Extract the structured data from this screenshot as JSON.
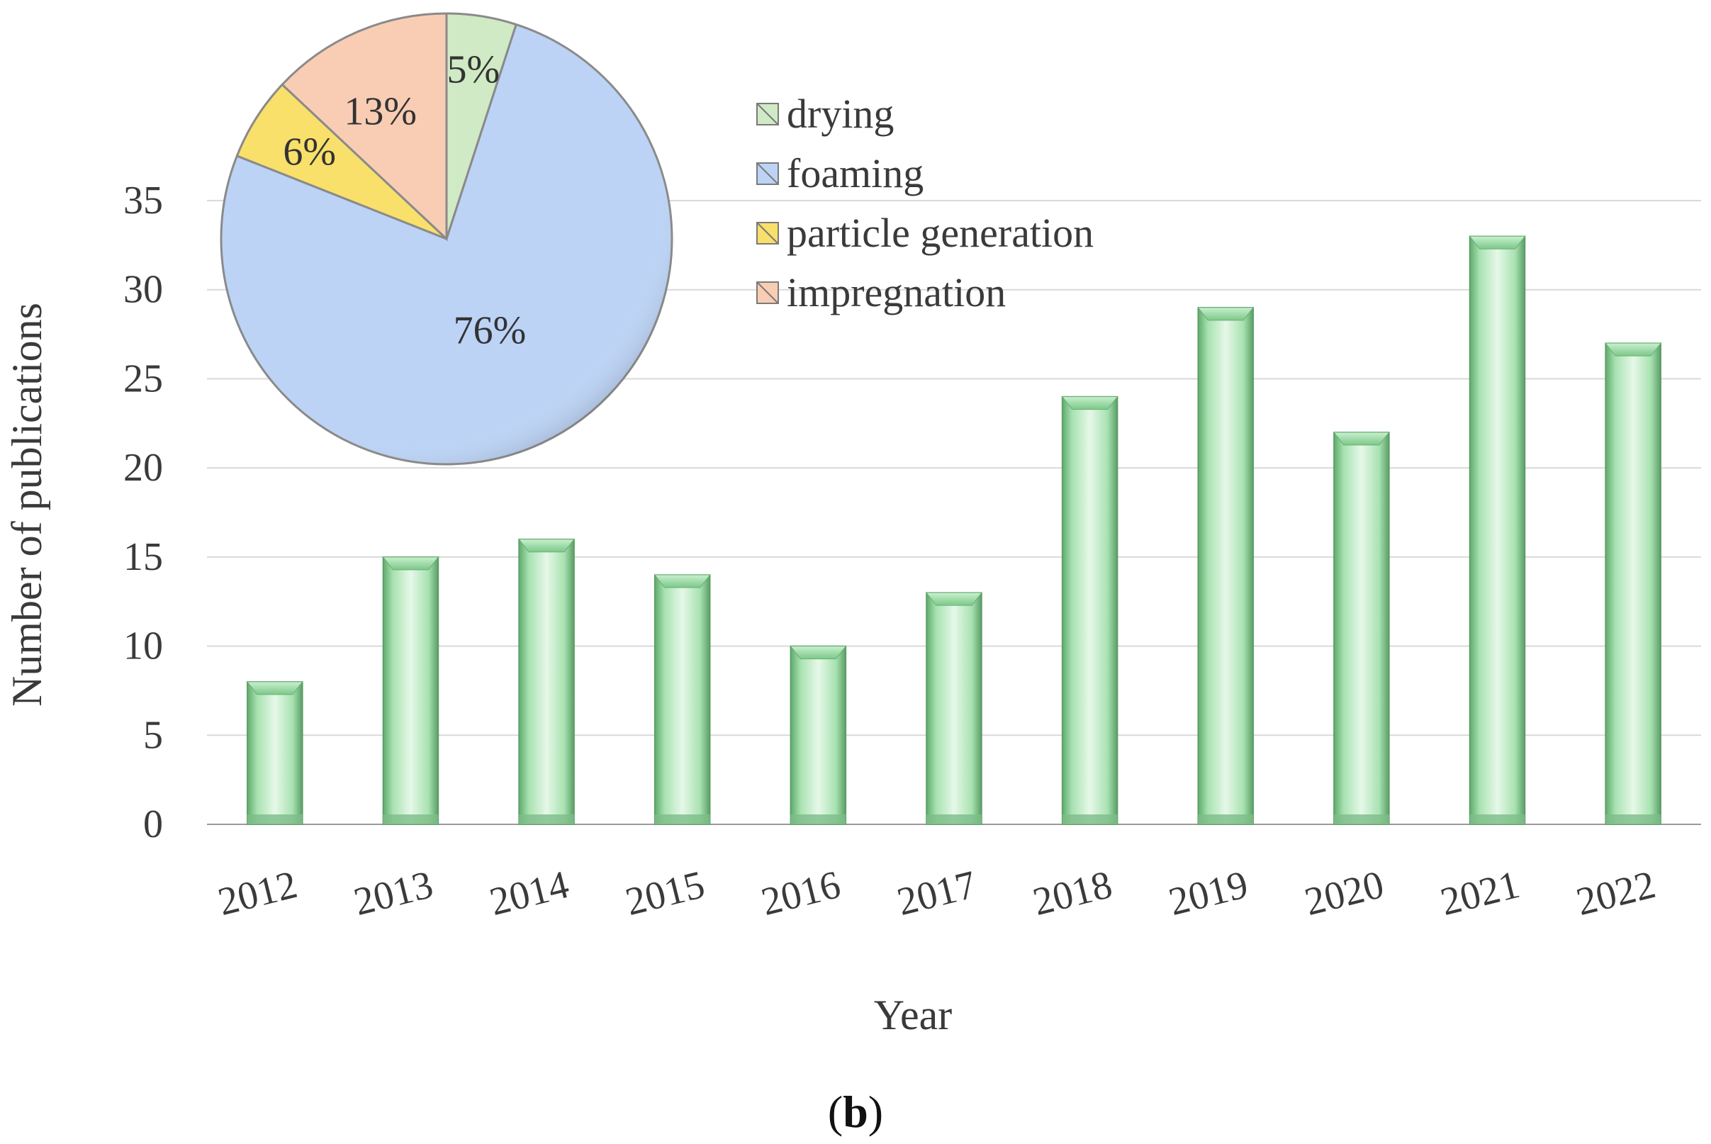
{
  "chart_data": [
    {
      "type": "bar",
      "title": "",
      "xlabel": "Year",
      "ylabel": "Number of publications",
      "categories": [
        "2012",
        "2013",
        "2014",
        "2015",
        "2016",
        "2017",
        "2018",
        "2019",
        "2020",
        "2021",
        "2022"
      ],
      "values": [
        8,
        15,
        16,
        14,
        10,
        13,
        24,
        29,
        22,
        33,
        27
      ],
      "ylim": [
        0,
        35
      ],
      "yticks": [
        0,
        5,
        10,
        15,
        20,
        25,
        30,
        35
      ],
      "ytick_labels": [
        "0",
        "5",
        "10",
        "15",
        "20",
        "25",
        "30",
        "35"
      ],
      "grid": true,
      "bar_color": "#8fd69a"
    },
    {
      "type": "pie",
      "legend_position": "right",
      "slices": [
        {
          "name": "drying",
          "value": 5,
          "label": "5%",
          "color": "#cfeac4"
        },
        {
          "name": "foaming",
          "value": 76,
          "label": "76%",
          "color": "#bcd3f5"
        },
        {
          "name": "particle generation",
          "value": 6,
          "label": "6%",
          "color": "#f8e06a"
        },
        {
          "name": "impregnation",
          "value": 13,
          "label": "13%",
          "color": "#f9cdb4"
        }
      ]
    }
  ],
  "panel": {
    "open": "(",
    "letter": "b",
    "close": ")"
  }
}
